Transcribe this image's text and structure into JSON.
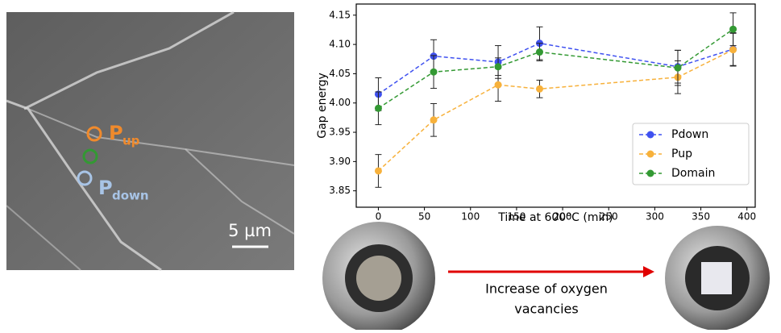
{
  "chart_data": {
    "type": "line",
    "x_label": "Time at 600°C (min)",
    "y_label": "Gap energy",
    "x": [
      0,
      60,
      130,
      175,
      325,
      385
    ],
    "series": [
      {
        "name": "Pdown",
        "color": "#3f51f0",
        "values": [
          4.015,
          4.08,
          4.07,
          4.102,
          4.062,
          4.092
        ],
        "errors": [
          0.028,
          0.028,
          0.028,
          0.028,
          0.028,
          0.028
        ]
      },
      {
        "name": "Pup",
        "color": "#f7b13b",
        "values": [
          3.884,
          3.971,
          4.031,
          4.024,
          4.044,
          4.091
        ],
        "errors": [
          0.028,
          0.028,
          0.028,
          0.015,
          0.028,
          0.028
        ]
      },
      {
        "name": "Domain",
        "color": "#339933",
        "values": [
          3.991,
          4.053,
          4.062,
          4.087,
          4.06,
          4.126
        ],
        "errors": [
          0.028,
          0.028,
          0.015,
          0.015,
          0.03,
          0.028
        ]
      }
    ],
    "xlim": [
      -24,
      409
    ],
    "xticks": [
      0,
      50,
      100,
      150,
      200,
      250,
      300,
      350,
      400
    ],
    "ylim": [
      3.822,
      4.169
    ],
    "yticks": [
      3.85,
      {
        "value": 3.9,
        "label": "3.90"
      },
      3.95,
      {
        "value": 4,
        "label": "4.00"
      },
      4.05,
      {
        "value": 4.1,
        "label": "4.10"
      },
      4.15
    ],
    "legend": "lower right",
    "grid": false
  },
  "sem_image": {
    "labels": [
      {
        "text": "P",
        "sub": "up",
        "color": "#f08a2c"
      },
      {
        "text": "P",
        "sub": "down",
        "color": "#a8c4e6"
      }
    ],
    "scale_bar": "5 µm"
  },
  "photos": {
    "caption": [
      "Increase of oxygen",
      "vacancies"
    ]
  }
}
